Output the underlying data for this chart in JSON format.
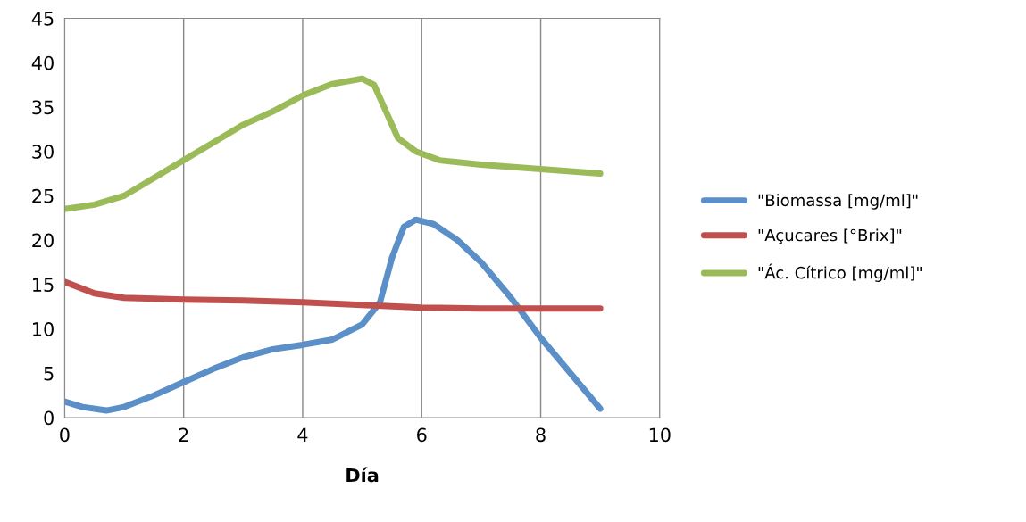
{
  "chart_data": {
    "type": "line",
    "xlabel": "Día",
    "xlim": [
      0,
      10
    ],
    "xticks": [
      0,
      2,
      4,
      6,
      8,
      10
    ],
    "ylim": [
      0,
      45
    ],
    "yticks": [
      0,
      5,
      10,
      15,
      20,
      25,
      30,
      35,
      40,
      45
    ],
    "grid": "x",
    "legend": "right",
    "marker": "none",
    "line_style": "solid",
    "series": [
      {
        "name": "\"Biomassa [mg/ml]\"",
        "color": "#5b8fc7",
        "x": [
          0,
          0.3,
          0.7,
          1,
          1.5,
          2,
          2.5,
          3,
          3.5,
          4,
          4.5,
          5,
          5.3,
          5.5,
          5.7,
          5.9,
          6.2,
          6.6,
          7,
          7.5,
          8,
          8.5,
          9
        ],
        "values": [
          1.8,
          1.2,
          0.8,
          1.2,
          2.5,
          4,
          5.5,
          6.8,
          7.7,
          8.2,
          8.8,
          10.5,
          13,
          18,
          21.5,
          22.3,
          21.8,
          20,
          17.5,
          13.5,
          9,
          5,
          1
        ]
      },
      {
        "name": "\"Açucares [°Brix]\"",
        "color": "#c0504d",
        "x": [
          0,
          0.5,
          1,
          2,
          3,
          4,
          5,
          6,
          7,
          8,
          9
        ],
        "values": [
          15.3,
          14,
          13.5,
          13.3,
          13.2,
          13,
          12.7,
          12.4,
          12.3,
          12.3,
          12.3
        ]
      },
      {
        "name": "\"Ác. Cítrico [mg/ml]\"",
        "color": "#9bbb59",
        "x": [
          0,
          0.5,
          1,
          1.5,
          2,
          2.5,
          3,
          3.5,
          4,
          4.5,
          5,
          5.2,
          5.4,
          5.6,
          5.9,
          6.3,
          7,
          8,
          9
        ],
        "values": [
          23.5,
          24,
          25,
          27,
          29,
          31,
          33,
          34.5,
          36.3,
          37.6,
          38.2,
          37.5,
          34.5,
          31.5,
          30,
          29,
          28.5,
          28,
          27.5
        ]
      }
    ]
  }
}
